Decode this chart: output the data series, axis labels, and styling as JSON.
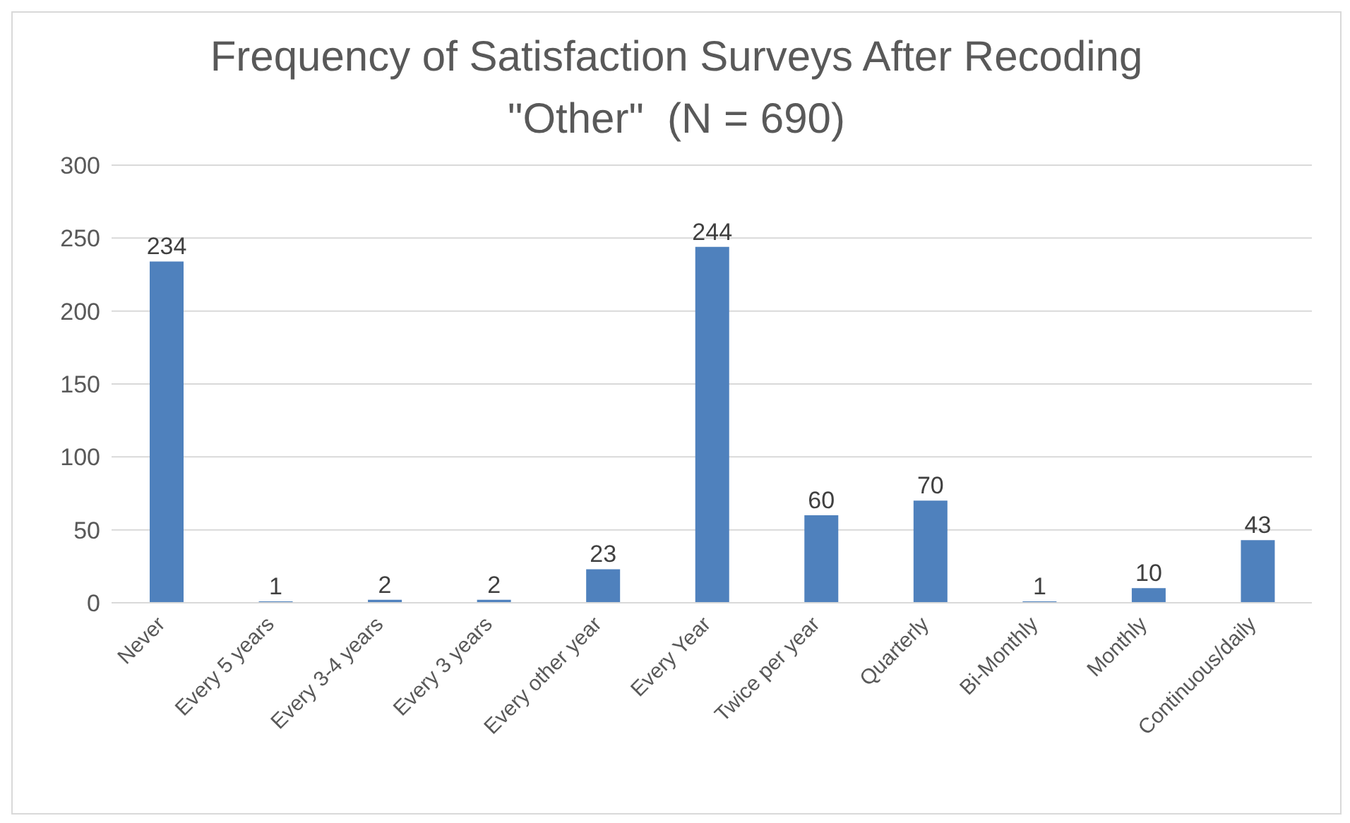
{
  "chart_data": {
    "type": "bar",
    "title": "Frequency of Satisfaction Surveys After Recoding \"Other\"  (N = 690)",
    "categories": [
      "Never",
      "Every 5 years",
      "Every 3-4 years",
      "Every 3 years",
      "Every other year",
      "Every Year",
      "Twice per year",
      "Quarterly",
      "Bi-Monthly",
      "Monthly",
      "Continuous/daily"
    ],
    "values": [
      234,
      1,
      2,
      2,
      23,
      244,
      60,
      70,
      1,
      10,
      43
    ],
    "color": "#4f81bd",
    "ylim": [
      0,
      300
    ],
    "yticks": [
      0,
      50,
      100,
      150,
      200,
      250,
      300
    ],
    "grid": "y",
    "data_labels": true
  }
}
